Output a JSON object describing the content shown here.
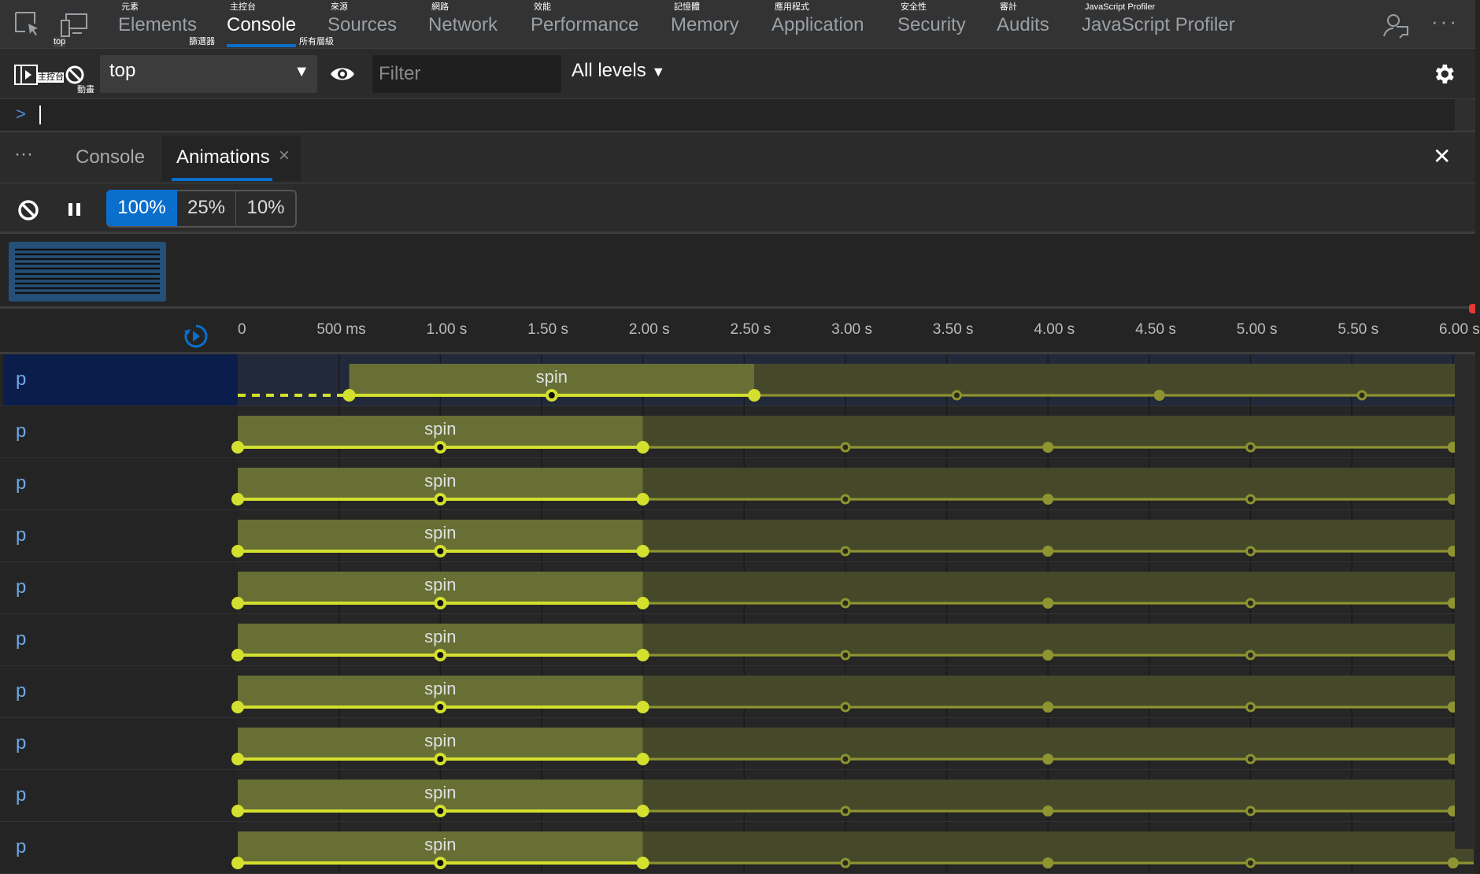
{
  "top_tabs": [
    {
      "label": "Elements",
      "hint": "元素"
    },
    {
      "label": "Console",
      "hint": "主控台",
      "active": true
    },
    {
      "label": "Sources",
      "hint": "來源"
    },
    {
      "label": "Network",
      "hint": "網路"
    },
    {
      "label": "Performance",
      "hint": "效能"
    },
    {
      "label": "Memory",
      "hint": "記憶體"
    },
    {
      "label": "Application",
      "hint": "應用程式"
    },
    {
      "label": "Security",
      "hint": "安全性"
    },
    {
      "label": "Audits",
      "hint": "審計"
    },
    {
      "label": "JavaScript Profiler",
      "hint": "JavaScript Profiler"
    }
  ],
  "overlay_hints": {
    "device": "top",
    "filter": "篩選器",
    "levels": "所有層級",
    "sidebar": "主控台",
    "clear": "動畫"
  },
  "toolbar": {
    "context": "top",
    "filter_placeholder": "Filter",
    "levels": "All levels"
  },
  "prompt": {
    "symbol": ">"
  },
  "drawer": {
    "more": "···",
    "tabs": [
      {
        "label": "Console"
      },
      {
        "label": "Animations",
        "active": true
      }
    ],
    "close_tab": "×",
    "close": "✕"
  },
  "speeds": [
    "100%",
    "25%",
    "10%"
  ],
  "active_speed": "100%",
  "ticks": [
    "0",
    "500 ms",
    "1.00 s",
    "1.50 s",
    "2.00 s",
    "2.50 s",
    "3.00 s",
    "3.50 s",
    "4.00 s",
    "4.50 s",
    "5.00 s",
    "5.50 s",
    "6.00 s"
  ],
  "colors": {
    "accent": "#0a6fcc",
    "keyframe": "#d4e02e",
    "bar": "#676f35",
    "bar_dim": "#45492a",
    "selected_row": "#0b1d4a"
  },
  "rows": [
    {
      "label": "p",
      "name": "spin",
      "delay_s": 0.55,
      "duration_s": 2,
      "selected": true
    },
    {
      "label": "p",
      "name": "spin",
      "delay_s": 0,
      "duration_s": 2
    },
    {
      "label": "p",
      "name": "spin",
      "delay_s": 0,
      "duration_s": 2
    },
    {
      "label": "p",
      "name": "spin",
      "delay_s": 0,
      "duration_s": 2
    },
    {
      "label": "p",
      "name": "spin",
      "delay_s": 0,
      "duration_s": 2
    },
    {
      "label": "p",
      "name": "spin",
      "delay_s": 0,
      "duration_s": 2
    },
    {
      "label": "p",
      "name": "spin",
      "delay_s": 0,
      "duration_s": 2
    },
    {
      "label": "p",
      "name": "spin",
      "delay_s": 0,
      "duration_s": 2
    },
    {
      "label": "p",
      "name": "spin",
      "delay_s": 0,
      "duration_s": 2
    },
    {
      "label": "p",
      "name": "spin",
      "delay_s": 0,
      "duration_s": 2
    }
  ]
}
